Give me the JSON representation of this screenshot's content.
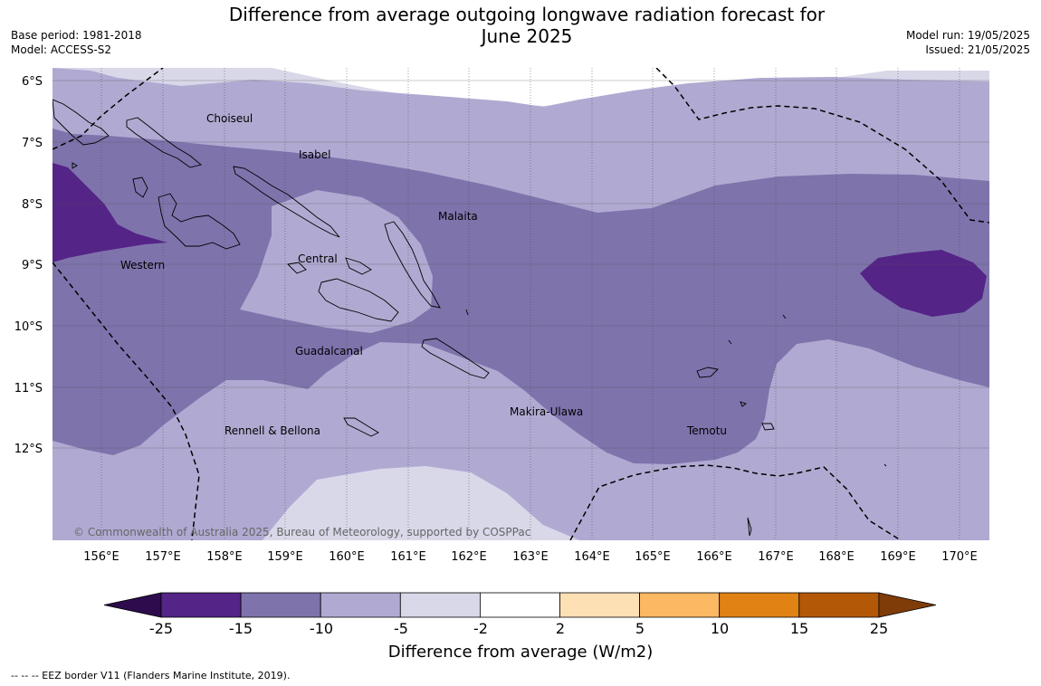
{
  "title_line1": "Difference from average outgoing longwave radiation forecast for",
  "title_line2": "June 2025",
  "base_period": "Base period: 1981-2018",
  "model": "Model: ACCESS-S2",
  "model_run": "Model run: 19/05/2025",
  "issued": "Issued: 21/05/2025",
  "copyright": "© Commonwealth of Australia 2025, Bureau of Meteorology, supported by COSPPac",
  "footnote": "--  --  -- EEZ border V11 (Flanders Marine Institute, 2019).",
  "longitude_labels": [
    "156°E",
    "157°E",
    "158°E",
    "159°E",
    "160°E",
    "161°E",
    "162°E",
    "163°E",
    "164°E",
    "165°E",
    "166°E",
    "167°E",
    "168°E",
    "169°E",
    "170°E"
  ],
  "latitude_labels": [
    "6°S",
    "7°S",
    "8°S",
    "9°S",
    "10°S",
    "11°S",
    "12°S"
  ],
  "places": [
    {
      "name": "Choiseul"
    },
    {
      "name": "Isabel"
    },
    {
      "name": "Malaita"
    },
    {
      "name": "Central"
    },
    {
      "name": "Western"
    },
    {
      "name": "Guadalcanal"
    },
    {
      "name": "Makira-Ulawa"
    },
    {
      "name": "Rennell & Bellona"
    },
    {
      "name": "Temotu"
    }
  ],
  "colorbar": {
    "title": "Difference from average (W/m2)",
    "ticks": [
      "-25",
      "-15",
      "-10",
      "-5",
      "-2",
      "2",
      "5",
      "10",
      "15",
      "25"
    ],
    "colors": [
      "#2d0b4d",
      "#542487",
      "#7f73ac",
      "#b0aad2",
      "#d8d8e9",
      "#ffffff",
      "#fee0b5",
      "#fdb863",
      "#e08214",
      "#b35806",
      "#7f3b08"
    ]
  },
  "map_colors": {
    "minus15_to_minus10": "#7f73ac",
    "minus10_to_minus5": "#b0aad2",
    "minus5_to_minus2": "#d8d8e9",
    "minus25_to_minus15": "#542487"
  }
}
